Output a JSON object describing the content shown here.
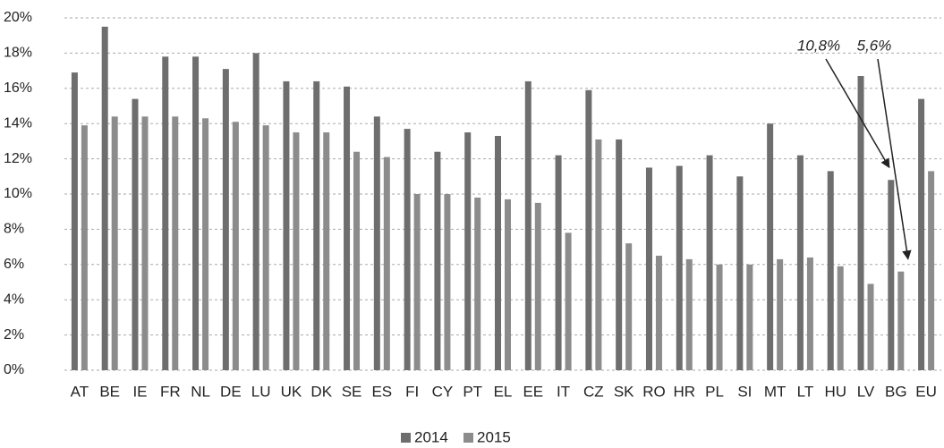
{
  "chart_data": {
    "type": "bar",
    "categories": [
      "AT",
      "BE",
      "IE",
      "FR",
      "NL",
      "DE",
      "LU",
      "UK",
      "DK",
      "SE",
      "ES",
      "FI",
      "CY",
      "PT",
      "EL",
      "EE",
      "IT",
      "CZ",
      "SK",
      "RO",
      "HR",
      "PL",
      "SI",
      "MT",
      "LT",
      "HU",
      "LV",
      "BG",
      "EU"
    ],
    "series": [
      {
        "name": "2014",
        "color": "#6e6e6e",
        "values": [
          16.9,
          19.5,
          15.4,
          17.8,
          17.8,
          17.1,
          18.0,
          16.4,
          16.4,
          16.1,
          14.4,
          13.7,
          12.4,
          13.5,
          13.3,
          16.4,
          12.2,
          15.9,
          13.1,
          11.5,
          11.6,
          12.2,
          11.0,
          14.0,
          12.2,
          11.3,
          16.7,
          10.8,
          15.4
        ]
      },
      {
        "name": "2015",
        "color": "#8c8c8c",
        "values": [
          13.9,
          14.4,
          14.4,
          14.4,
          14.3,
          14.1,
          13.9,
          13.5,
          13.5,
          12.4,
          12.1,
          10.0,
          10.0,
          9.8,
          9.7,
          9.5,
          7.8,
          13.1,
          7.2,
          6.5,
          6.3,
          6.0,
          6.0,
          6.3,
          6.4,
          5.9,
          4.9,
          5.6,
          11.3
        ]
      }
    ],
    "annotations": [
      {
        "text": "10,8%",
        "category": "BG",
        "series": "2014"
      },
      {
        "text": "5,6%",
        "category": "BG",
        "series": "2015"
      }
    ],
    "ylim": [
      0,
      20
    ],
    "yticks": [
      {
        "value": 0,
        "label": "0%"
      },
      {
        "value": 2,
        "label": "2%"
      },
      {
        "value": 4,
        "label": "4%"
      },
      {
        "value": 6,
        "label": "6%"
      },
      {
        "value": 8,
        "label": "8%"
      },
      {
        "value": 10,
        "label": "10%"
      },
      {
        "value": 12,
        "label": "12%"
      },
      {
        "value": 14,
        "label": "14%"
      },
      {
        "value": 16,
        "label": "16%"
      },
      {
        "value": 18,
        "label": "18%"
      },
      {
        "value": 20,
        "label": "20%"
      }
    ],
    "grid": true,
    "legend": "bottom"
  }
}
